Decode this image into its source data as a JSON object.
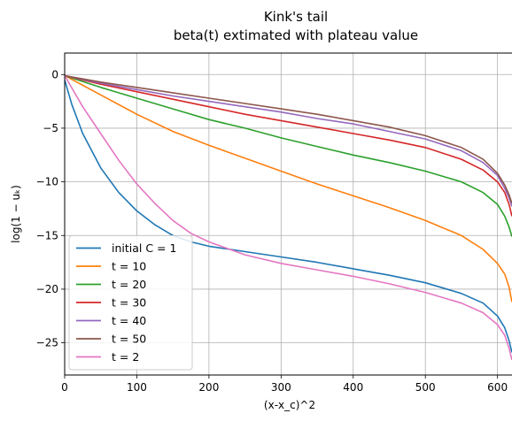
{
  "chart_data": {
    "type": "line",
    "title": "Kink's tail",
    "subtitle": "beta(t) extimated with plateau value",
    "xlabel": "(x-x_c)^2",
    "ylabel": "log(1 − uₖ)",
    "xlim": [
      0,
      625
    ],
    "ylim": [
      -28,
      2
    ],
    "x_ticks": [
      0,
      100,
      200,
      300,
      400,
      500,
      600
    ],
    "y_ticks": [
      0,
      -5,
      -10,
      -15,
      -20,
      -25
    ],
    "grid": true,
    "legend_position": "lower-left",
    "series": [
      {
        "name": "initial C = 1",
        "color": "#1f77b4",
        "points": [
          [
            0,
            -0.5
          ],
          [
            10,
            -2.8
          ],
          [
            25,
            -5.5
          ],
          [
            50,
            -8.7
          ],
          [
            75,
            -11.0
          ],
          [
            100,
            -12.7
          ],
          [
            125,
            -14.0
          ],
          [
            150,
            -15.0
          ],
          [
            175,
            -15.6
          ],
          [
            200,
            -16.0
          ],
          [
            250,
            -16.5
          ],
          [
            300,
            -17.0
          ],
          [
            350,
            -17.5
          ],
          [
            400,
            -18.1
          ],
          [
            450,
            -18.7
          ],
          [
            500,
            -19.4
          ],
          [
            550,
            -20.4
          ],
          [
            580,
            -21.3
          ],
          [
            600,
            -22.5
          ],
          [
            610,
            -23.6
          ],
          [
            616,
            -24.8
          ],
          [
            620,
            -25.9
          ]
        ]
      },
      {
        "name": "t = 10",
        "color": "#ff7f0e",
        "points": [
          [
            0,
            -0.1
          ],
          [
            50,
            -1.9
          ],
          [
            100,
            -3.7
          ],
          [
            150,
            -5.3
          ],
          [
            200,
            -6.6
          ],
          [
            250,
            -7.8
          ],
          [
            300,
            -9.0
          ],
          [
            350,
            -10.2
          ],
          [
            400,
            -11.3
          ],
          [
            450,
            -12.4
          ],
          [
            500,
            -13.6
          ],
          [
            550,
            -15.0
          ],
          [
            580,
            -16.3
          ],
          [
            600,
            -17.6
          ],
          [
            610,
            -18.6
          ],
          [
            616,
            -19.8
          ],
          [
            620,
            -21.2
          ]
        ]
      },
      {
        "name": "t = 20",
        "color": "#2ca02c",
        "points": [
          [
            0,
            -0.1
          ],
          [
            50,
            -1.2
          ],
          [
            100,
            -2.2
          ],
          [
            150,
            -3.2
          ],
          [
            200,
            -4.2
          ],
          [
            250,
            -5.0
          ],
          [
            300,
            -5.9
          ],
          [
            350,
            -6.7
          ],
          [
            400,
            -7.5
          ],
          [
            450,
            -8.2
          ],
          [
            500,
            -9.0
          ],
          [
            550,
            -10.0
          ],
          [
            580,
            -11.0
          ],
          [
            600,
            -12.1
          ],
          [
            610,
            -13.2
          ],
          [
            616,
            -14.2
          ],
          [
            620,
            -15.1
          ]
        ]
      },
      {
        "name": "t = 30",
        "color": "#d62728",
        "points": [
          [
            0,
            -0.1
          ],
          [
            50,
            -0.9
          ],
          [
            100,
            -1.6
          ],
          [
            150,
            -2.3
          ],
          [
            200,
            -3.0
          ],
          [
            250,
            -3.7
          ],
          [
            300,
            -4.3
          ],
          [
            350,
            -4.9
          ],
          [
            400,
            -5.5
          ],
          [
            450,
            -6.1
          ],
          [
            500,
            -6.8
          ],
          [
            550,
            -7.9
          ],
          [
            580,
            -8.9
          ],
          [
            600,
            -10.0
          ],
          [
            610,
            -11.0
          ],
          [
            616,
            -12.1
          ],
          [
            620,
            -13.2
          ]
        ]
      },
      {
        "name": "t = 40",
        "color": "#9467bd",
        "points": [
          [
            0,
            -0.1
          ],
          [
            50,
            -0.8
          ],
          [
            100,
            -1.4
          ],
          [
            150,
            -2.0
          ],
          [
            200,
            -2.5
          ],
          [
            250,
            -3.0
          ],
          [
            300,
            -3.5
          ],
          [
            350,
            -4.1
          ],
          [
            400,
            -4.6
          ],
          [
            450,
            -5.3
          ],
          [
            500,
            -6.0
          ],
          [
            550,
            -7.1
          ],
          [
            580,
            -8.2
          ],
          [
            600,
            -9.4
          ],
          [
            610,
            -10.6
          ],
          [
            616,
            -11.5
          ],
          [
            620,
            -12.3
          ]
        ]
      },
      {
        "name": "t = 50",
        "color": "#8c564b",
        "points": [
          [
            0,
            -0.1
          ],
          [
            50,
            -0.7
          ],
          [
            100,
            -1.2
          ],
          [
            150,
            -1.7
          ],
          [
            200,
            -2.2
          ],
          [
            250,
            -2.7
          ],
          [
            300,
            -3.2
          ],
          [
            350,
            -3.7
          ],
          [
            400,
            -4.3
          ],
          [
            450,
            -4.9
          ],
          [
            500,
            -5.7
          ],
          [
            550,
            -6.8
          ],
          [
            580,
            -7.9
          ],
          [
            600,
            -9.2
          ],
          [
            610,
            -10.3
          ],
          [
            616,
            -11.2
          ],
          [
            620,
            -12.0
          ]
        ]
      },
      {
        "name": "t = 2",
        "color": "#e377c2",
        "points": [
          [
            0,
            -0.1
          ],
          [
            25,
            -3.0
          ],
          [
            50,
            -5.5
          ],
          [
            75,
            -8.0
          ],
          [
            100,
            -10.2
          ],
          [
            125,
            -12.0
          ],
          [
            150,
            -13.6
          ],
          [
            175,
            -14.8
          ],
          [
            200,
            -15.6
          ],
          [
            250,
            -16.8
          ],
          [
            300,
            -17.6
          ],
          [
            350,
            -18.2
          ],
          [
            400,
            -18.8
          ],
          [
            450,
            -19.5
          ],
          [
            500,
            -20.3
          ],
          [
            550,
            -21.3
          ],
          [
            580,
            -22.2
          ],
          [
            600,
            -23.3
          ],
          [
            610,
            -24.3
          ],
          [
            616,
            -25.5
          ],
          [
            620,
            -26.6
          ]
        ]
      }
    ]
  }
}
